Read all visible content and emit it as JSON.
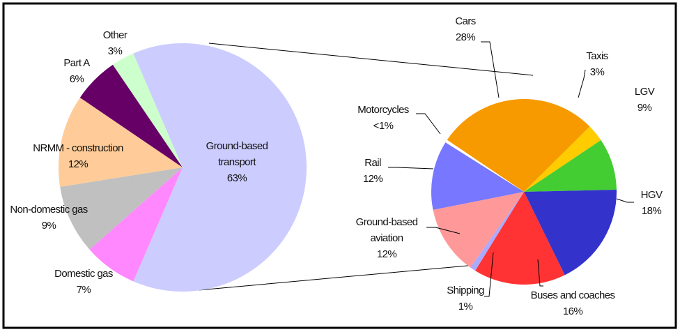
{
  "chart_data": [
    {
      "type": "pie",
      "categories": [
        "Ground-based transport",
        "Domestic gas",
        "Non-domestic gas",
        "NRMM - construction",
        "Part A",
        "Other"
      ],
      "values": [
        63,
        7,
        9,
        12,
        6,
        3
      ],
      "value_labels": [
        "63%",
        "7%",
        "9%",
        "12%",
        "6%",
        "3%"
      ],
      "colors": [
        "#ccccff",
        "#ff88ff",
        "#c0c0c0",
        "#ffcc99",
        "#660066",
        "#ccffcc"
      ]
    },
    {
      "type": "pie",
      "categories": [
        "Cars",
        "Taxis",
        "LGV",
        "HGV",
        "Buses and coaches",
        "Shipping",
        "Ground-based aviation",
        "Rail",
        "Motorcycles"
      ],
      "values": [
        28,
        3,
        9,
        18,
        16,
        1,
        12,
        12,
        0.5
      ],
      "value_labels": [
        "28%",
        "3%",
        "9%",
        "18%",
        "16%",
        "1%",
        "12%",
        "12%",
        "<1%"
      ],
      "colors": [
        "#f79a00",
        "#ffcc00",
        "#44cc33",
        "#3333cc",
        "#ff3333",
        "#aaaaff",
        "#ff9999",
        "#7777ff",
        "#ffffff"
      ]
    }
  ]
}
